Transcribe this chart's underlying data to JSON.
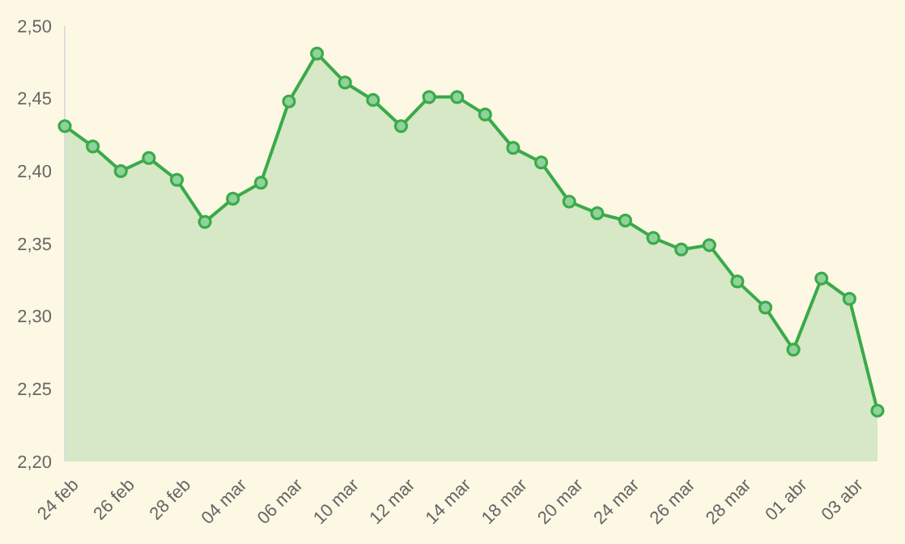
{
  "chart_data": {
    "type": "area",
    "categories": [
      "24 feb",
      null,
      "26 feb",
      null,
      "28 feb",
      null,
      "04 mar",
      null,
      "06 mar",
      null,
      "10 mar",
      null,
      "12 mar",
      null,
      "14 mar",
      null,
      "18 mar",
      null,
      "20 mar",
      null,
      "24 mar",
      null,
      "26 mar",
      null,
      "28 mar",
      null,
      "01 abr",
      null,
      "03 abr",
      null
    ],
    "series": [
      {
        "color": "#3aaa4a",
        "values": [
          2.431,
          2.417,
          2.4,
          2.409,
          2.394,
          2.365,
          2.381,
          2.392,
          2.448,
          2.481,
          2.461,
          2.449,
          2.431,
          2.451,
          2.451,
          2.439,
          2.416,
          2.406,
          2.379,
          2.371,
          2.366,
          2.354,
          2.346,
          2.349,
          2.324,
          2.306,
          2.277,
          2.326,
          2.312,
          2.235
        ]
      }
    ],
    "ylim": [
      2.2,
      2.5
    ],
    "yticks": [
      {
        "value": 2.2,
        "label": "2,20"
      },
      {
        "value": 2.25,
        "label": "2,25"
      },
      {
        "value": 2.3,
        "label": "2,30"
      },
      {
        "value": 2.35,
        "label": "2,35"
      },
      {
        "value": 2.4,
        "label": "2,40"
      },
      {
        "value": 2.45,
        "label": "2,45"
      },
      {
        "value": 2.5,
        "label": "2,50"
      }
    ],
    "grid": false,
    "legend": false,
    "marker": "circle",
    "line_style": "solid"
  }
}
